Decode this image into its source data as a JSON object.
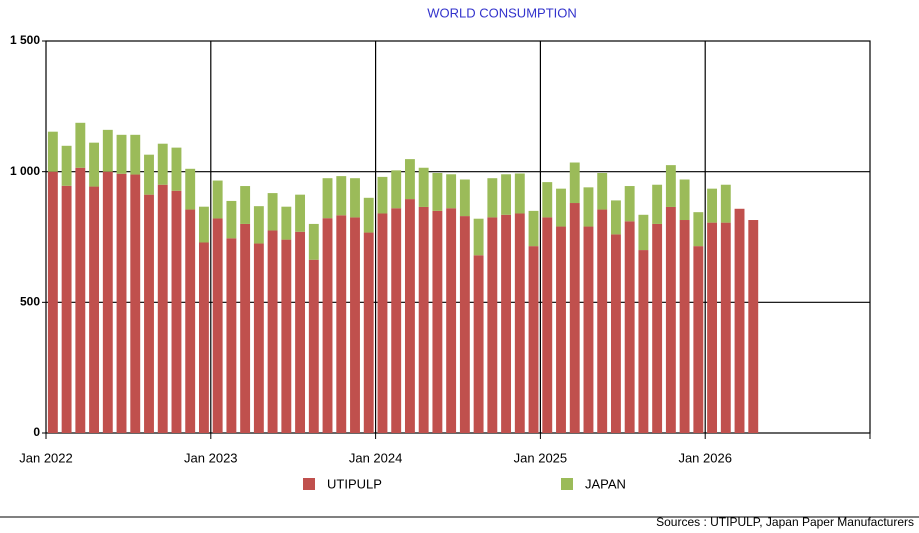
{
  "chart_data": {
    "type": "stacked_bar",
    "title": "WORLD CONSUMPTION",
    "source": "Sources : UTIPULP, Japan Paper Manufacturers",
    "categories": [
      "Jan 2022",
      null,
      null,
      null,
      null,
      null,
      null,
      null,
      null,
      null,
      null,
      null,
      "Jan 2023",
      null,
      null,
      null,
      null,
      null,
      null,
      null,
      null,
      null,
      null,
      null,
      "Jan 2024",
      null,
      null,
      null,
      null,
      null,
      null,
      null,
      null,
      null,
      null,
      null,
      "Jan 2025",
      null,
      null,
      null,
      null,
      null,
      null,
      null,
      null,
      null,
      null,
      null,
      "Jan 2026",
      null,
      null,
      null,
      null,
      null,
      null,
      null,
      null,
      null,
      null,
      null
    ],
    "series": [
      {
        "name": "UTIPULP",
        "color": "#c0504d",
        "values": [
          1000,
          946,
          1015,
          943,
          1000,
          992,
          989,
          912,
          950,
          927,
          855,
          729,
          821,
          745,
          800,
          725,
          775,
          740,
          770,
          663,
          822,
          833,
          825,
          767,
          840,
          860,
          895,
          865,
          850,
          860,
          830,
          680,
          825,
          835,
          840,
          715,
          825,
          790,
          880,
          790,
          855,
          760,
          810,
          700,
          800,
          865,
          815,
          715,
          805,
          805,
          858,
          815,
          null,
          null,
          null,
          null,
          null,
          null,
          null,
          null
        ]
      },
      {
        "name": "JAPAN",
        "color": "#9bbb59",
        "values": [
          153,
          153,
          172,
          168,
          160,
          149,
          152,
          153,
          157,
          165,
          156,
          137,
          145,
          143,
          145,
          143,
          143,
          126,
          142,
          137,
          153,
          150,
          150,
          133,
          140,
          145,
          153,
          150,
          145,
          130,
          140,
          140,
          150,
          155,
          153,
          135,
          135,
          145,
          155,
          150,
          140,
          130,
          135,
          135,
          150,
          160,
          155,
          130,
          130,
          145,
          null,
          null,
          null,
          null,
          null,
          null,
          null,
          null,
          null,
          null
        ]
      }
    ],
    "ylim": [
      0,
      1500
    ],
    "yticks": [
      0,
      500,
      {
        "value": 1000,
        "label": "1 000"
      },
      {
        "value": 1500,
        "label": "1 500"
      }
    ],
    "grid": true
  }
}
